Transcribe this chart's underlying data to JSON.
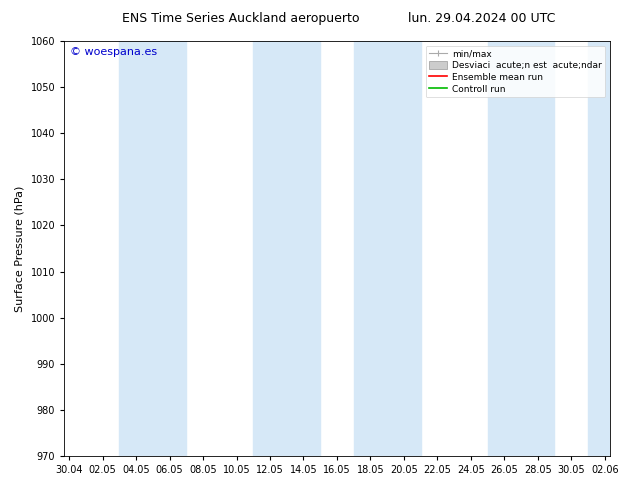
{
  "title_left": "ENS Time Series Auckland aeropuerto",
  "title_right": "lun. 29.04.2024 00 UTC",
  "ylabel": "Surface Pressure (hPa)",
  "ylim": [
    970,
    1060
  ],
  "yticks": [
    970,
    980,
    990,
    1000,
    1010,
    1020,
    1030,
    1040,
    1050,
    1060
  ],
  "xtick_labels": [
    "30.04",
    "02.05",
    "04.05",
    "06.05",
    "08.05",
    "10.05",
    "12.05",
    "14.05",
    "16.05",
    "18.05",
    "20.05",
    "22.05",
    "24.05",
    "26.05",
    "28.05",
    "30.05",
    "02.06"
  ],
  "watermark": "© woespana.es",
  "watermark_color": "#0000cc",
  "background_color": "#ffffff",
  "plot_bg_color": "#ffffff",
  "shaded_band_color": "#d6e8f7",
  "shaded_band_alpha": 1.0,
  "band_labels": [
    "04.05",
    "06.05",
    "12.05",
    "14.05",
    "18.05",
    "20.05",
    "26.05",
    "28.05",
    "02.06"
  ],
  "legend_label_minmax": "min/max",
  "legend_label_std": "Desviaci  acute;n est  acute;ndar",
  "legend_label_ensemble": "Ensemble mean run",
  "legend_label_control": "Controll run",
  "legend_color_minmax": "#aaaaaa",
  "legend_color_std": "#cccccc",
  "legend_color_ensemble": "#ff0000",
  "legend_color_control": "#00bb00",
  "title_fontsize": 9,
  "tick_fontsize": 7,
  "ylabel_fontsize": 8,
  "legend_fontsize": 6.5,
  "watermark_fontsize": 8
}
